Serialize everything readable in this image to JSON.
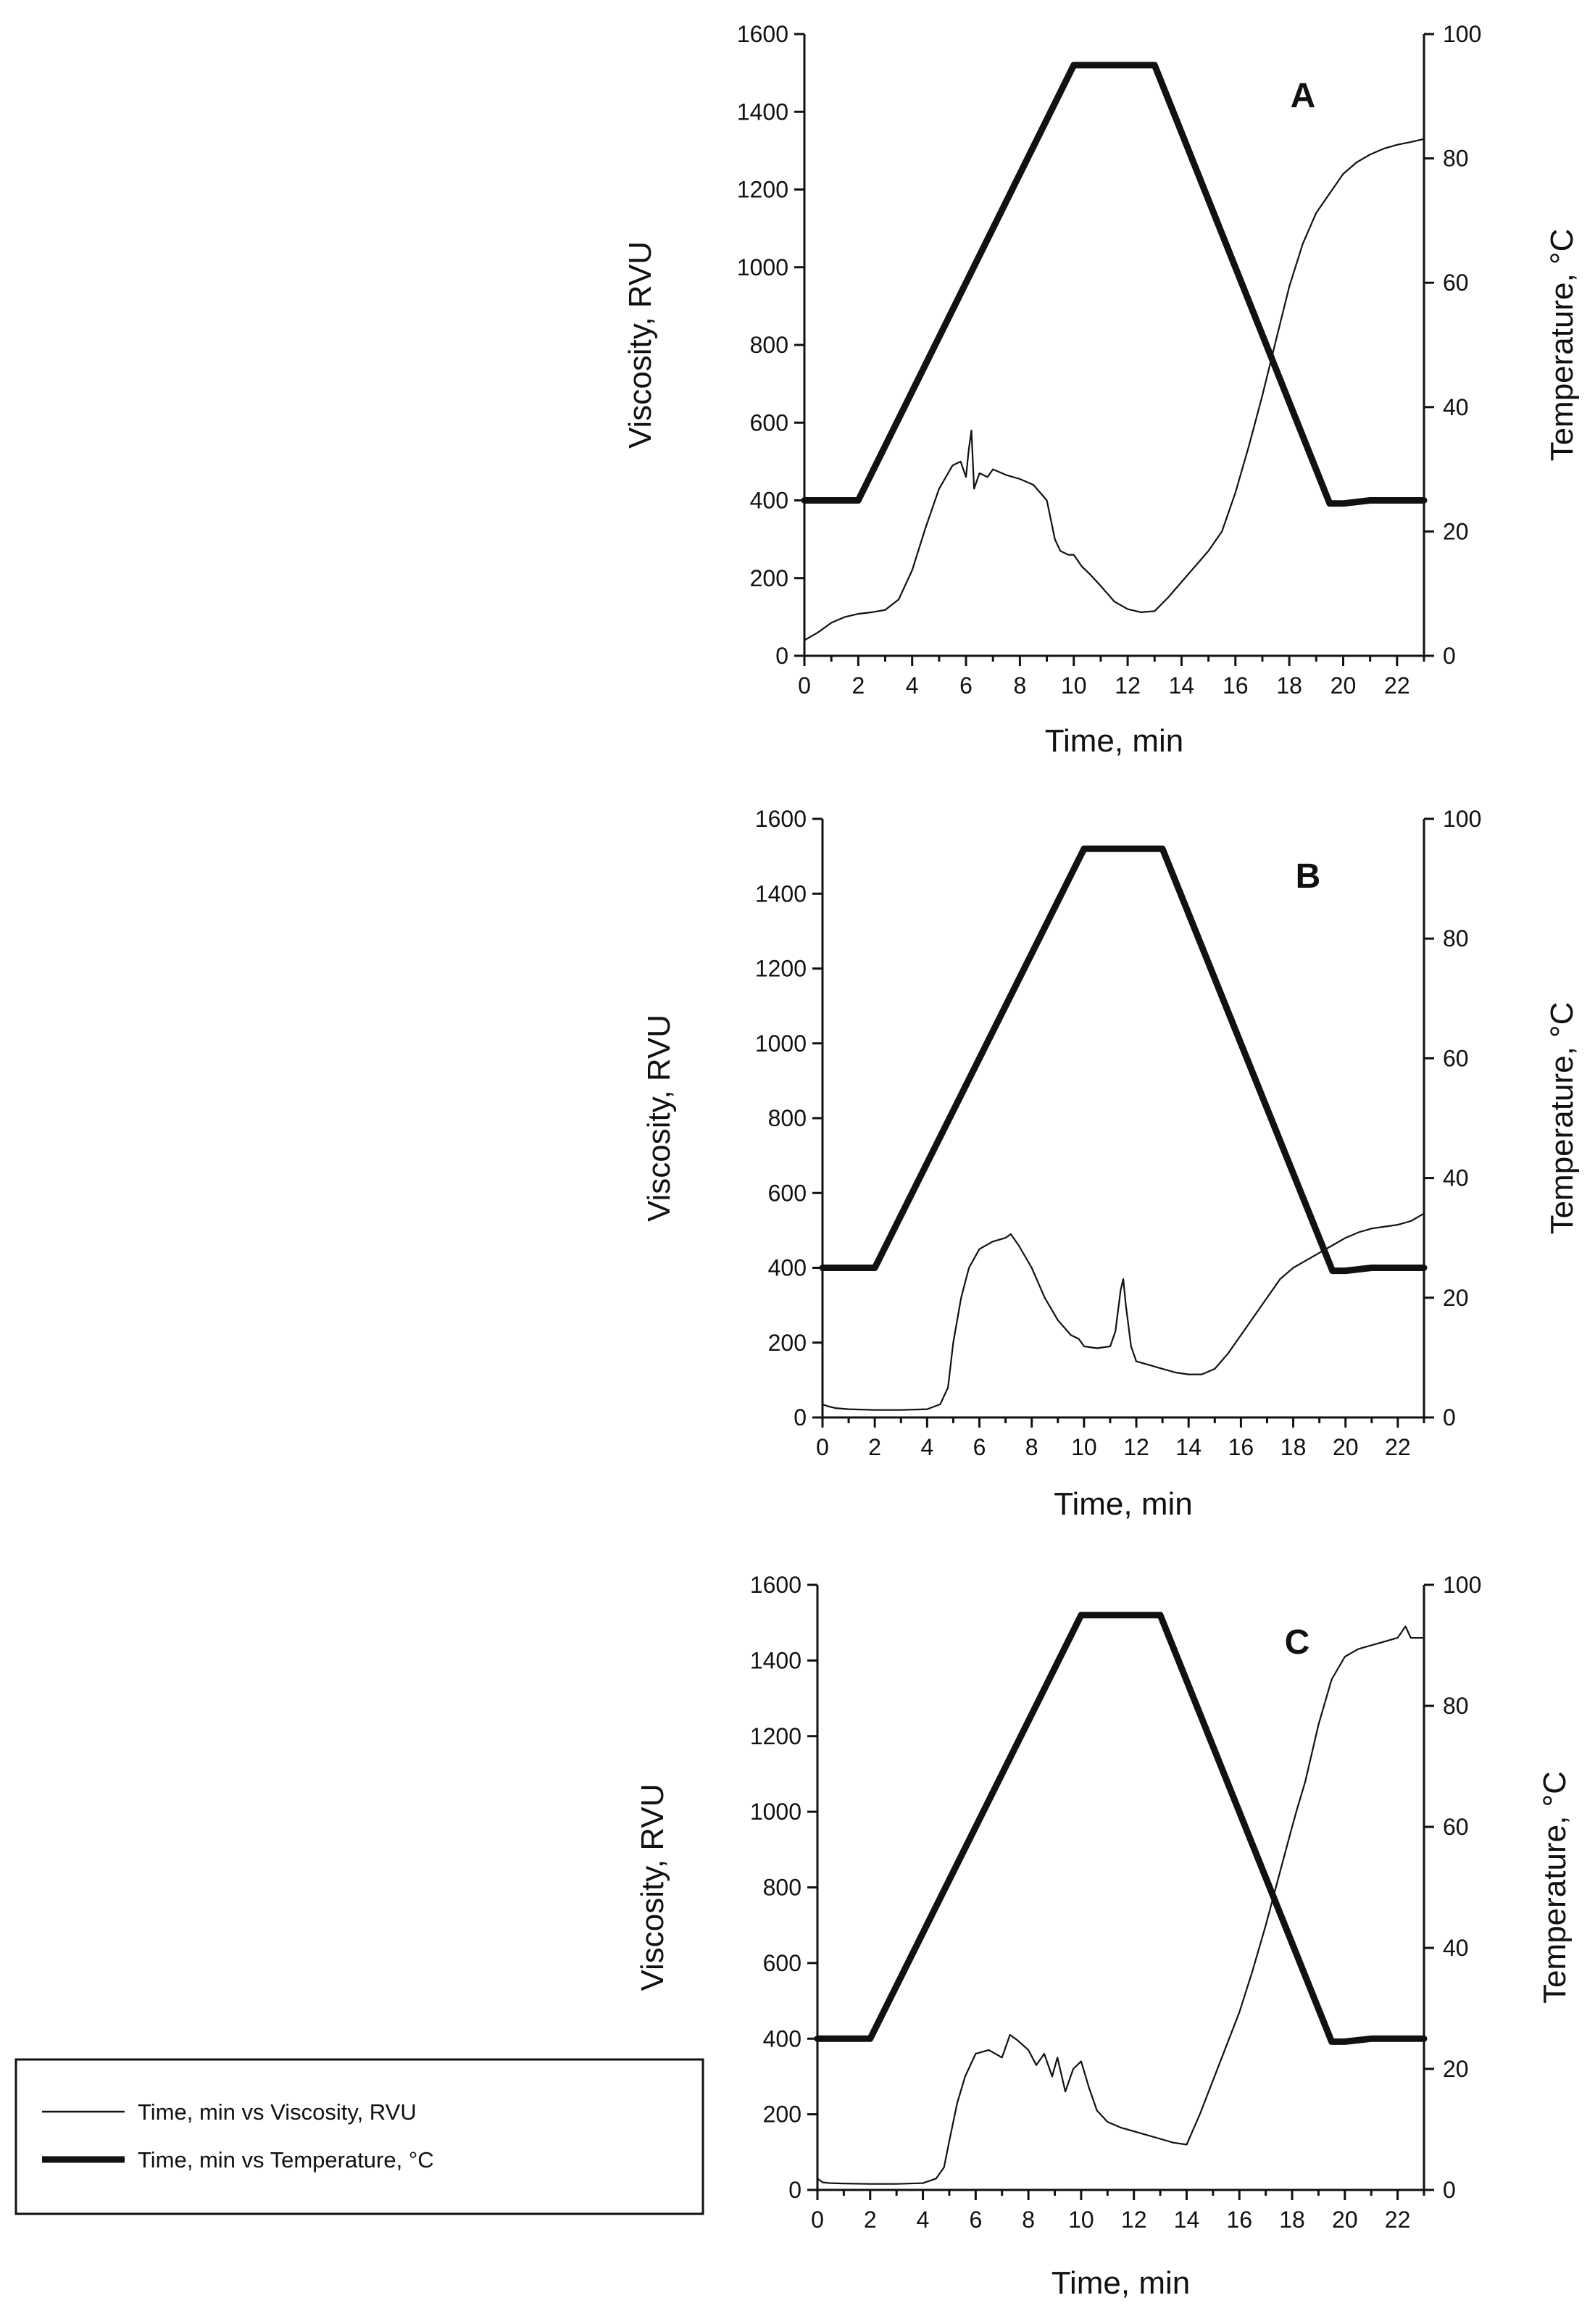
{
  "legend": {
    "items": [
      {
        "label": "Time, min vs Viscosity, RVU",
        "style": "thin"
      },
      {
        "label": "Time, min vs Temperature, °C",
        "style": "thick"
      }
    ]
  },
  "chart_data": [
    {
      "type": "line",
      "panel": "A",
      "xlabel": "Time, min",
      "ylabel": "Viscosity, RVU",
      "y2label": "Temperature, °C",
      "xlim": [
        0,
        23
      ],
      "ylim": [
        0,
        1600
      ],
      "y2lim": [
        0,
        100
      ],
      "xticks": [
        0,
        2,
        4,
        6,
        8,
        10,
        12,
        14,
        16,
        18,
        20,
        22
      ],
      "yticks": [
        0,
        200,
        400,
        600,
        800,
        1000,
        1200,
        1400,
        1600
      ],
      "y2ticks": [
        0,
        20,
        40,
        60,
        80,
        100
      ],
      "series": [
        {
          "name": "Time, min vs Viscosity, RVU",
          "axis": "left",
          "x": [
            0,
            0.5,
            1,
            1.5,
            2,
            2.5,
            3,
            3.5,
            4,
            4.5,
            5,
            5.5,
            5.8,
            6.0,
            6.1,
            6.2,
            6.3,
            6.5,
            6.8,
            7,
            7.5,
            8,
            8.5,
            9,
            9.3,
            9.5,
            9.8,
            10,
            10.3,
            10.6,
            11,
            11.5,
            12,
            12.5,
            13,
            13.5,
            14,
            14.5,
            15,
            15.5,
            16,
            16.5,
            17,
            17.5,
            18,
            18.5,
            19,
            19.5,
            20,
            20.5,
            21,
            21.5,
            22,
            22.5,
            23
          ],
          "y": [
            40,
            60,
            85,
            100,
            108,
            112,
            118,
            145,
            220,
            330,
            430,
            490,
            500,
            460,
            530,
            580,
            430,
            470,
            460,
            480,
            465,
            455,
            440,
            400,
            300,
            270,
            260,
            260,
            230,
            210,
            180,
            140,
            120,
            112,
            115,
            150,
            190,
            230,
            270,
            320,
            420,
            540,
            670,
            810,
            950,
            1060,
            1140,
            1190,
            1240,
            1270,
            1290,
            1305,
            1315,
            1322,
            1330
          ]
        },
        {
          "name": "Time, min vs Temperature, °C",
          "axis": "right",
          "x": [
            0,
            2,
            10,
            13,
            19.5,
            20,
            21,
            23
          ],
          "y": [
            25,
            25,
            95,
            95,
            24.5,
            24.5,
            25,
            25
          ]
        }
      ]
    },
    {
      "type": "line",
      "panel": "B",
      "xlabel": "Time, min",
      "ylabel": "Viscosity, RVU",
      "y2label": "Temperature, °C",
      "xlim": [
        0,
        23
      ],
      "ylim": [
        0,
        1600
      ],
      "y2lim": [
        0,
        100
      ],
      "xticks": [
        0,
        2,
        4,
        6,
        8,
        10,
        12,
        14,
        16,
        18,
        20,
        22
      ],
      "yticks": [
        0,
        200,
        400,
        600,
        800,
        1000,
        1200,
        1400,
        1600
      ],
      "y2ticks": [
        0,
        20,
        40,
        60,
        80,
        100
      ],
      "series": [
        {
          "name": "Time, min vs Viscosity, RVU",
          "axis": "left",
          "x": [
            0,
            0.2,
            0.5,
            1,
            2,
            3,
            4,
            4.5,
            4.8,
            5,
            5.3,
            5.6,
            6,
            6.5,
            7,
            7.2,
            7.5,
            8,
            8.5,
            9,
            9.5,
            9.8,
            10,
            10.5,
            11,
            11.2,
            11.4,
            11.5,
            11.6,
            11.8,
            12,
            12.5,
            13,
            13.5,
            14,
            14.5,
            15,
            15.5,
            16,
            16.5,
            17,
            17.5,
            18,
            18.5,
            19,
            19.5,
            20,
            20.5,
            21,
            21.5,
            22,
            22.5,
            23
          ],
          "y": [
            35,
            30,
            25,
            22,
            20,
            20,
            22,
            35,
            80,
            200,
            320,
            400,
            450,
            470,
            480,
            490,
            460,
            400,
            320,
            260,
            220,
            210,
            190,
            185,
            190,
            230,
            340,
            370,
            300,
            190,
            150,
            140,
            130,
            120,
            115,
            115,
            130,
            170,
            220,
            270,
            320,
            370,
            400,
            420,
            440,
            460,
            480,
            495,
            505,
            510,
            515,
            525,
            545
          ]
        },
        {
          "name": "Time, min vs Temperature, °C",
          "axis": "right",
          "x": [
            0,
            2,
            10,
            13,
            19.5,
            20,
            21,
            23
          ],
          "y": [
            25,
            25,
            95,
            95,
            24.5,
            24.5,
            25,
            25
          ]
        }
      ]
    },
    {
      "type": "line",
      "panel": "C",
      "xlabel": "Time, min",
      "ylabel": "Viscosity, RVU",
      "y2label": "Temperature, °C",
      "xlim": [
        0,
        23
      ],
      "ylim": [
        0,
        1600
      ],
      "y2lim": [
        0,
        100
      ],
      "xticks": [
        0,
        2,
        4,
        6,
        8,
        10,
        12,
        14,
        16,
        18,
        20,
        22
      ],
      "yticks": [
        0,
        200,
        400,
        600,
        800,
        1000,
        1200,
        1400,
        1600
      ],
      "y2ticks": [
        0,
        20,
        40,
        60,
        80,
        100
      ],
      "series": [
        {
          "name": "Time, min vs Viscosity, RVU",
          "axis": "left",
          "x": [
            0,
            0.2,
            0.5,
            1,
            2,
            3,
            4,
            4.5,
            4.8,
            5,
            5.3,
            5.6,
            6,
            6.5,
            7,
            7.3,
            7.6,
            8,
            8.3,
            8.6,
            8.9,
            9.1,
            9.4,
            9.7,
            10,
            10.3,
            10.6,
            11,
            11.5,
            12,
            12.5,
            13,
            13.5,
            14,
            14.5,
            15,
            15.5,
            16,
            16.5,
            17,
            17.5,
            18,
            18.2,
            18.5,
            19,
            19.5,
            20,
            20.5,
            21,
            21.5,
            22,
            22.3,
            22.5,
            23
          ],
          "y": [
            30,
            20,
            18,
            17,
            16,
            16,
            18,
            30,
            60,
            130,
            230,
            300,
            360,
            370,
            350,
            410,
            395,
            370,
            330,
            360,
            300,
            350,
            260,
            320,
            340,
            270,
            210,
            180,
            165,
            155,
            145,
            135,
            125,
            120,
            200,
            290,
            380,
            470,
            580,
            700,
            830,
            960,
            1010,
            1080,
            1230,
            1350,
            1410,
            1430,
            1440,
            1450,
            1460,
            1490,
            1460,
            1460
          ]
        },
        {
          "name": "Time, min vs Temperature, °C",
          "axis": "right",
          "x": [
            0,
            2,
            10,
            13,
            19.5,
            20,
            21,
            23
          ],
          "y": [
            25,
            25,
            95,
            95,
            24.5,
            24.5,
            25,
            25
          ]
        }
      ]
    }
  ]
}
